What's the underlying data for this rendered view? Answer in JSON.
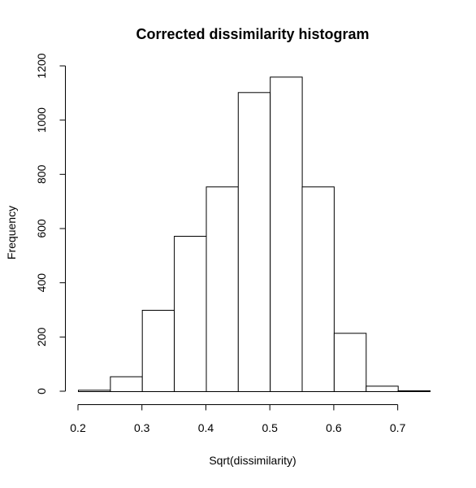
{
  "chart_data": {
    "type": "bar",
    "title": "Corrected dissimilarity histogram",
    "xlabel": "Sqrt(dissimilarity)",
    "ylabel": "Frequency",
    "bin_edges": [
      0.2,
      0.25,
      0.3,
      0.35,
      0.4,
      0.45,
      0.5,
      0.55,
      0.6,
      0.65,
      0.7,
      0.75
    ],
    "values": [
      5,
      55,
      300,
      573,
      755,
      1103,
      1160,
      755,
      215,
      20,
      3
    ],
    "xlim": [
      0.2,
      0.75
    ],
    "ylim": [
      0,
      1200
    ],
    "x_ticks": [
      "0.2",
      "0.3",
      "0.4",
      "0.5",
      "0.6",
      "0.7"
    ],
    "y_ticks": [
      "0",
      "200",
      "400",
      "600",
      "800",
      "1000",
      "1200"
    ],
    "grid": false,
    "legend": "none",
    "colors": {
      "bar_fill": "#ffffff",
      "bar_stroke": "#000000"
    }
  }
}
